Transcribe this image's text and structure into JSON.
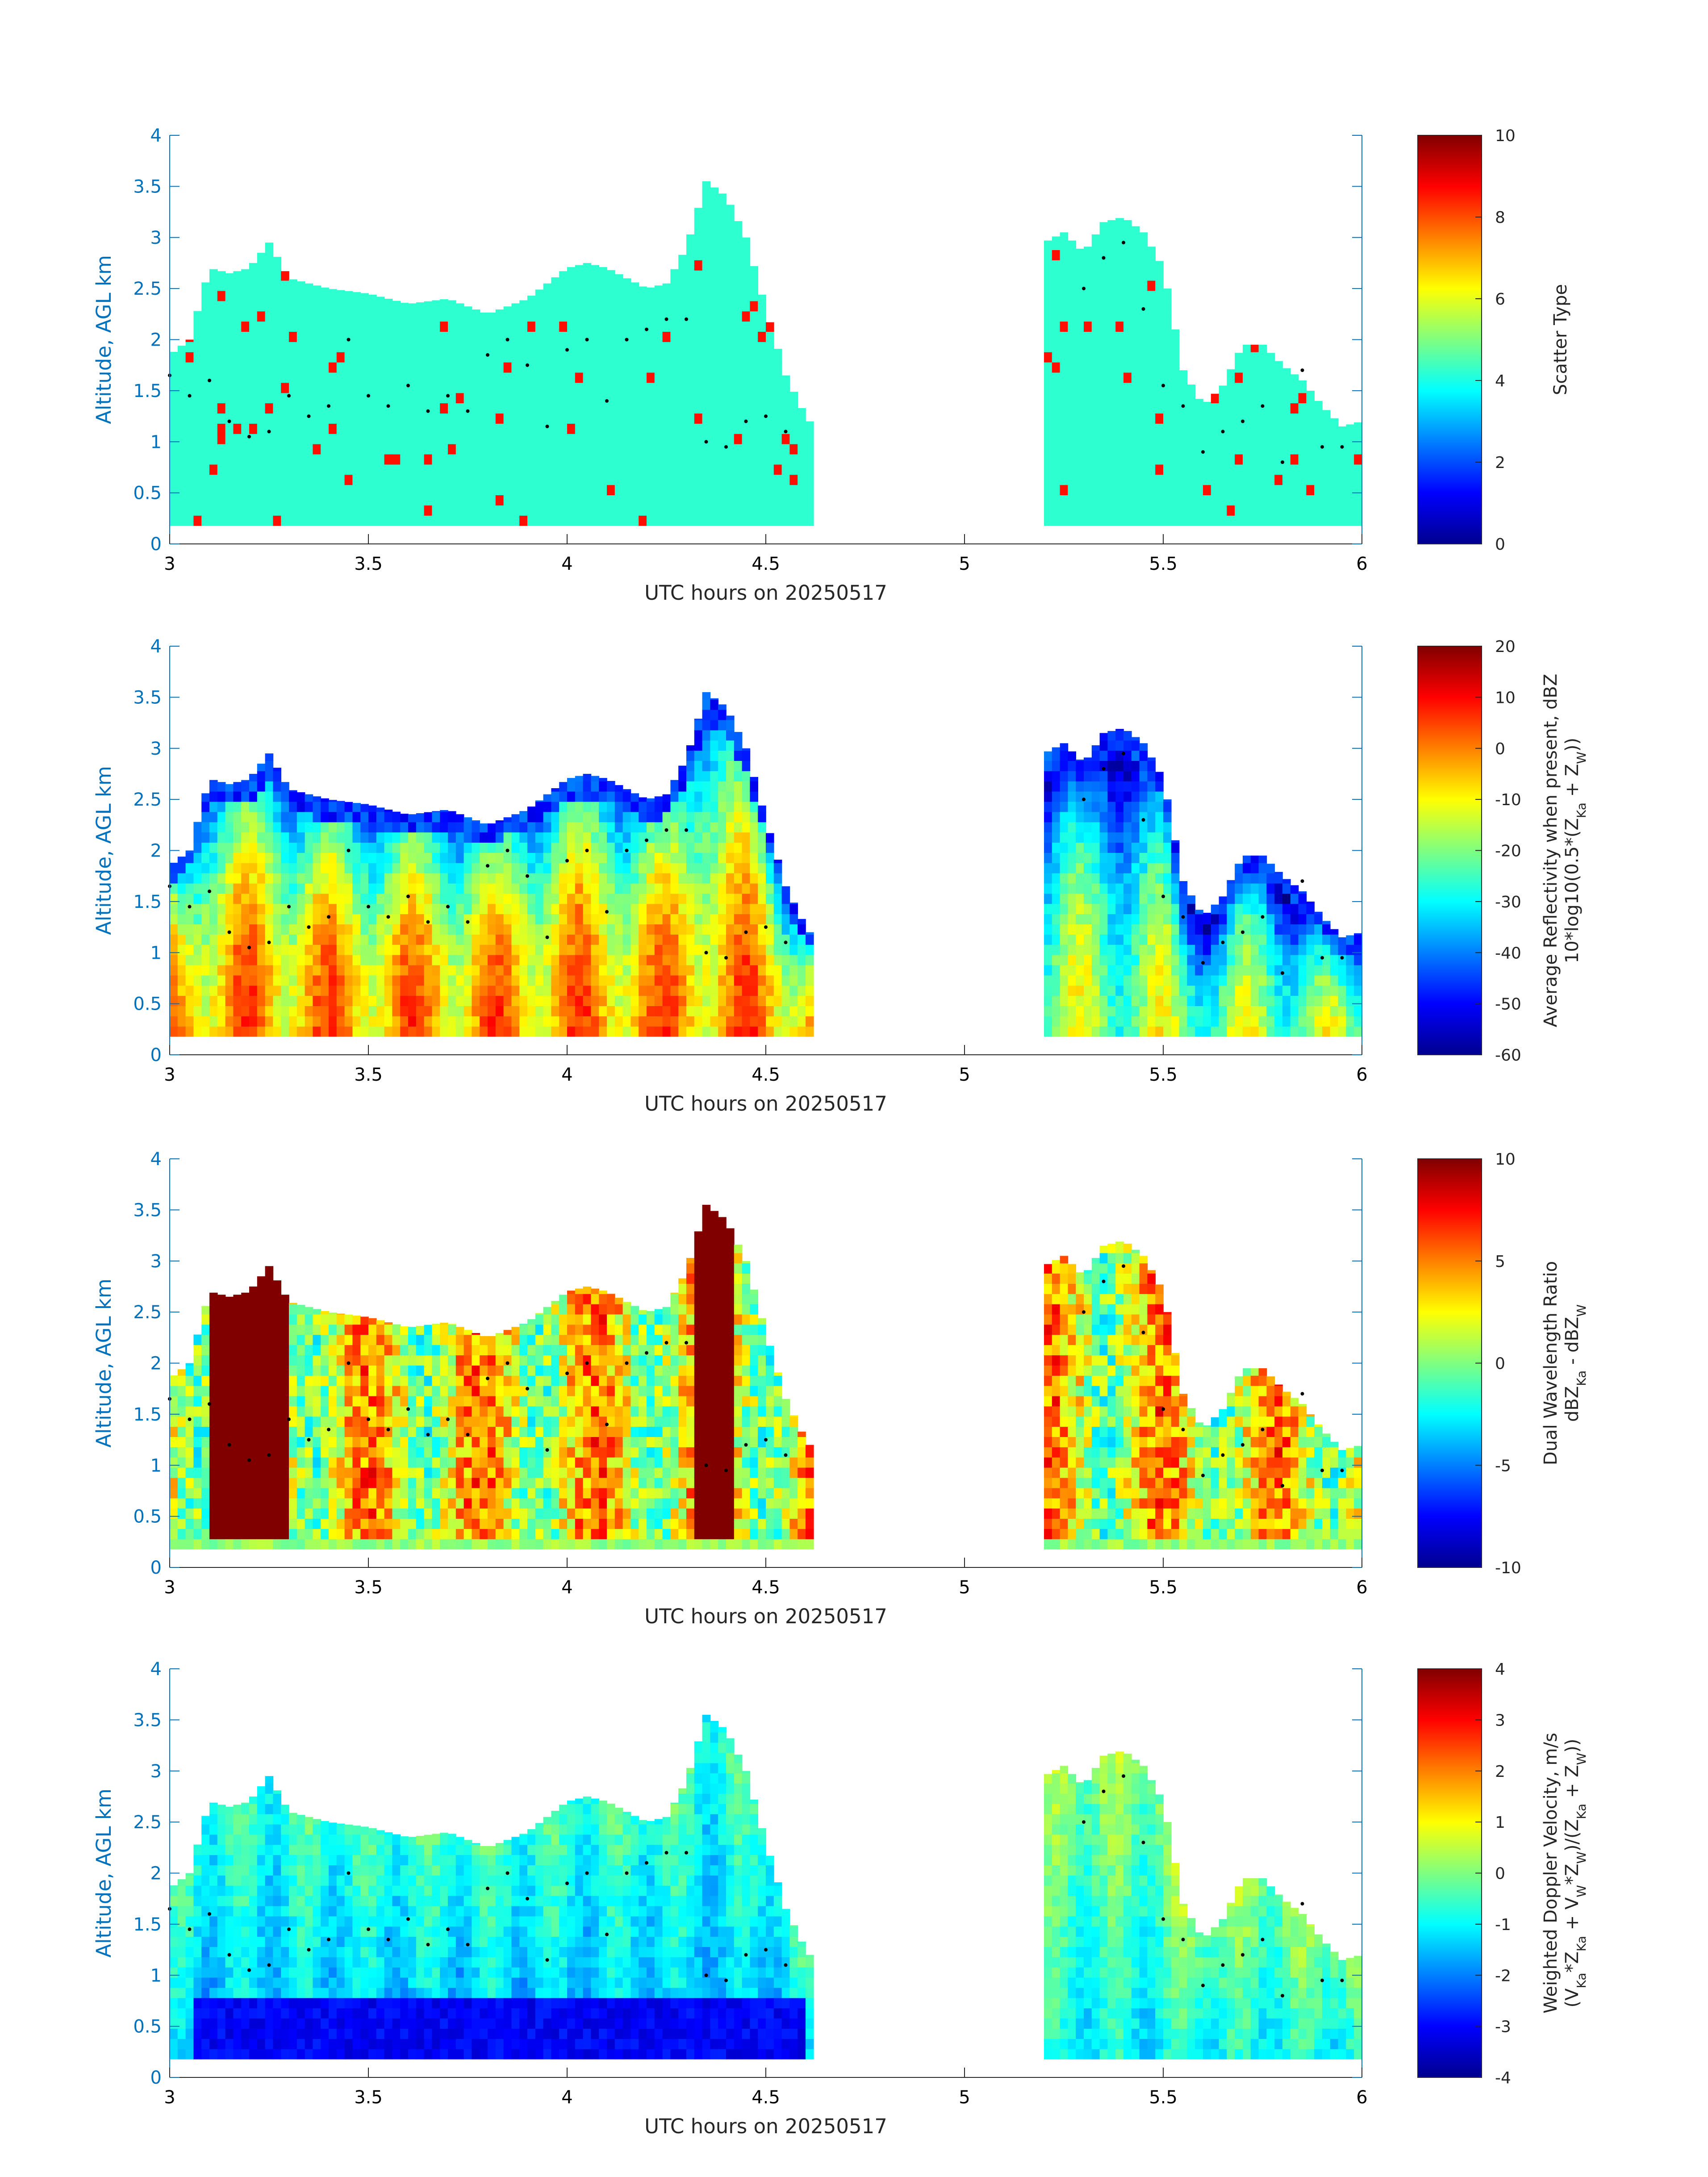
{
  "chart_data": [
    {
      "type": "heatmap",
      "name": "scatter-type",
      "xlabel": "UTC hours on 20250517",
      "ylabel": "Altitude, AGL km",
      "xlim": [
        3,
        6
      ],
      "ylim": [
        0,
        4
      ],
      "x_ticks": [
        "3",
        "3.5",
        "4",
        "4.5",
        "5",
        "5.5",
        "6"
      ],
      "y_ticks": [
        "0",
        "0.5",
        "1",
        "1.5",
        "2",
        "2.5",
        "3",
        "3.5",
        "4"
      ],
      "colorbar": {
        "label_lines": [
          "Scatter Type"
        ],
        "range": [
          0,
          10
        ],
        "ticks": [
          "0",
          "2",
          "4",
          "6",
          "8",
          "10"
        ],
        "colormap": "jet"
      },
      "dominant_value": 4.2,
      "secondary_value": 8.6
    },
    {
      "type": "heatmap",
      "name": "average-reflectivity",
      "xlabel": "UTC hours on 20250517",
      "ylabel": "Altitude, AGL km",
      "xlim": [
        3,
        6
      ],
      "ylim": [
        0,
        4
      ],
      "x_ticks": [
        "3",
        "3.5",
        "4",
        "4.5",
        "5",
        "5.5",
        "6"
      ],
      "y_ticks": [
        "0",
        "0.5",
        "1",
        "1.5",
        "2",
        "2.5",
        "3",
        "3.5",
        "4"
      ],
      "colorbar": {
        "label_lines": [
          "Average Reflectivity when present, dBZ",
          "10*log10(0.5*(Z",
          "Ka",
          " + Z",
          "W",
          "))"
        ],
        "range": [
          -60,
          20
        ],
        "ticks": [
          "-60",
          "-50",
          "-40",
          "-30",
          "-20",
          "-10",
          "0",
          "10",
          "20"
        ],
        "colormap": "jet"
      }
    },
    {
      "type": "heatmap",
      "name": "dual-wavelength-ratio",
      "xlabel": "UTC hours on 20250517",
      "ylabel": "Altitude, AGL km",
      "xlim": [
        3,
        6
      ],
      "ylim": [
        0,
        4
      ],
      "x_ticks": [
        "3",
        "3.5",
        "4",
        "4.5",
        "5",
        "5.5",
        "6"
      ],
      "y_ticks": [
        "0",
        "0.5",
        "1",
        "1.5",
        "2",
        "2.5",
        "3",
        "3.5",
        "4"
      ],
      "colorbar": {
        "label_lines": [
          "Dual Wavelength Ratio",
          "dBZ",
          "Ka",
          " - dBZ",
          "W"
        ],
        "range": [
          -10,
          10
        ],
        "ticks": [
          "-10",
          "-5",
          "0",
          "5",
          "10"
        ],
        "colormap": "jet"
      }
    },
    {
      "type": "heatmap",
      "name": "weighted-doppler-velocity",
      "xlabel": "UTC hours on 20250517",
      "ylabel": "Altitude, AGL km",
      "xlim": [
        3,
        6
      ],
      "ylim": [
        0,
        4
      ],
      "x_ticks": [
        "3",
        "3.5",
        "4",
        "4.5",
        "5",
        "5.5",
        "6"
      ],
      "y_ticks": [
        "0",
        "0.5",
        "1",
        "1.5",
        "2",
        "2.5",
        "3",
        "3.5",
        "4"
      ],
      "colorbar": {
        "label_lines": [
          "Weighted Doppler Velocity, m/s",
          "(V",
          "Ka",
          "*Z",
          "Ka",
          " + V",
          "W",
          "*Z",
          "W",
          ")/(Z",
          "Ka",
          " + Z",
          "W",
          "))"
        ],
        "range": [
          -4,
          4
        ],
        "ticks": [
          "-4",
          "-3",
          "-2",
          "-1",
          "0",
          "1",
          "2",
          "3",
          "4"
        ],
        "colormap": "jet"
      }
    }
  ],
  "cloud_profile": {
    "time": [
      3.0,
      3.05,
      3.1,
      3.15,
      3.2,
      3.25,
      3.3,
      3.4,
      3.5,
      3.6,
      3.7,
      3.8,
      3.9,
      4.0,
      4.05,
      4.1,
      4.2,
      4.25,
      4.3,
      4.35,
      4.4,
      4.45,
      4.5,
      4.55,
      4.6,
      4.62
    ],
    "top": [
      1.85,
      2.0,
      2.7,
      2.65,
      2.7,
      2.95,
      2.6,
      2.5,
      2.45,
      2.35,
      2.4,
      2.25,
      2.4,
      2.7,
      2.75,
      2.7,
      2.5,
      2.55,
      2.9,
      3.55,
      3.4,
      3.0,
      2.3,
      1.65,
      1.25,
      1.15
    ],
    "base": 0.18,
    "cells": [
      {
        "time": [
          5.2,
          5.25,
          5.3,
          5.35,
          5.4,
          5.45,
          5.5,
          5.55
        ],
        "top": [
          2.95,
          3.05,
          2.85,
          3.15,
          3.2,
          3.05,
          2.7,
          1.7
        ]
      },
      {
        "time": [
          5.55,
          5.6,
          5.65,
          5.7,
          5.75,
          5.8,
          5.85,
          5.9,
          5.95,
          6.0
        ],
        "top": [
          1.7,
          1.35,
          1.55,
          1.95,
          1.95,
          1.75,
          1.6,
          1.35,
          1.15,
          1.2
        ]
      }
    ]
  },
  "layer_points": {
    "time": [
      3.0,
      3.05,
      3.1,
      3.15,
      3.2,
      3.25,
      3.3,
      3.35,
      3.4,
      3.45,
      3.5,
      3.55,
      3.6,
      3.65,
      3.7,
      3.75,
      3.8,
      3.85,
      3.9,
      3.95,
      4.0,
      4.05,
      4.1,
      4.15,
      4.2,
      4.25,
      4.3,
      4.35,
      4.4,
      4.45,
      4.5,
      4.55,
      5.3,
      5.35,
      5.4,
      5.45,
      5.5,
      5.55,
      5.6,
      5.65,
      5.7,
      5.75,
      5.8,
      5.85,
      5.9,
      5.95
    ],
    "alt": [
      1.65,
      1.45,
      1.6,
      1.2,
      1.05,
      1.1,
      1.45,
      1.25,
      1.35,
      2.0,
      1.45,
      1.35,
      1.55,
      1.3,
      1.45,
      1.3,
      1.85,
      2.0,
      1.75,
      1.15,
      1.9,
      2.0,
      1.4,
      2.0,
      2.1,
      2.2,
      2.2,
      1.0,
      0.95,
      1.2,
      1.25,
      1.1,
      2.5,
      2.8,
      2.95,
      2.3,
      1.55,
      1.35,
      0.9,
      1.1,
      1.2,
      1.35,
      0.8,
      1.7,
      0.95,
      0.95
    ]
  }
}
